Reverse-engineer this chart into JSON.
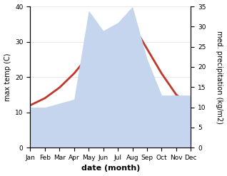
{
  "months": [
    "Jan",
    "Feb",
    "Mar",
    "Apr",
    "May",
    "Jun",
    "Jul",
    "Aug",
    "Sep",
    "Oct",
    "Nov",
    "Dec"
  ],
  "temperature": [
    12,
    14,
    17,
    21,
    26,
    30,
    33,
    35,
    28,
    21,
    15,
    12
  ],
  "precipitation": [
    10,
    10,
    11,
    12,
    34,
    29,
    31,
    35,
    22,
    13,
    13,
    13
  ],
  "temp_color": "#c0392b",
  "precip_fill_color": "#c5d5ee",
  "left_ylim": [
    0,
    40
  ],
  "right_ylim": [
    0,
    35
  ],
  "left_yticks": [
    0,
    10,
    20,
    30,
    40
  ],
  "right_yticks": [
    0,
    5,
    10,
    15,
    20,
    25,
    30,
    35
  ],
  "xlabel": "date (month)",
  "ylabel_left": "max temp (C)",
  "ylabel_right": "med. precipitation (kg/m2)",
  "background_color": "#ffffff",
  "temp_linewidth": 2.0,
  "xlabel_fontsize": 8,
  "ylabel_fontsize": 7,
  "tick_fontsize": 6.5
}
